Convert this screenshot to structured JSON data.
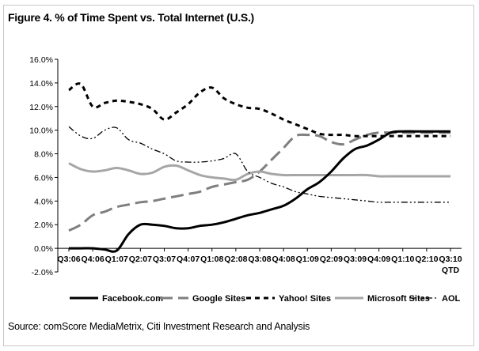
{
  "figure_title": "Figure 4. % of Time Spent vs. Total Internet (U.S.)",
  "source_text": "Source: comScore MediaMetrix, Citi Investment Research and Analysis",
  "chart_data": {
    "type": "line",
    "title": "Figure 4. % of Time Spent vs. Total Internet (U.S.)",
    "xlabel": "",
    "ylabel": "",
    "ylim": [
      -2.0,
      16.0
    ],
    "y_ticks": [
      "-2.0%",
      "0.0%",
      "2.0%",
      "4.0%",
      "6.0%",
      "8.0%",
      "10.0%",
      "12.0%",
      "14.0%",
      "16.0%"
    ],
    "y_tick_values": [
      -2,
      0,
      2,
      4,
      6,
      8,
      10,
      12,
      14,
      16
    ],
    "categories": [
      "Q3:06",
      "Q4:06",
      "Q1:07",
      "Q2:07",
      "Q3:07",
      "Q4:07",
      "Q1:08",
      "Q2:08",
      "Q3:08",
      "Q4:08",
      "Q1:09",
      "Q2:09",
      "Q3:09",
      "Q4:09",
      "Q1:10",
      "Q2:10",
      "Q3:10 QTD"
    ],
    "category_labels": [
      [
        "Q3:06"
      ],
      [
        "Q4:06"
      ],
      [
        "Q1:07"
      ],
      [
        "Q2:07"
      ],
      [
        "Q3:07"
      ],
      [
        "Q4:07"
      ],
      [
        "Q1:08"
      ],
      [
        "Q2:08"
      ],
      [
        "Q3:08"
      ],
      [
        "Q4:08"
      ],
      [
        "Q1:09"
      ],
      [
        "Q2:09"
      ],
      [
        "Q3:09"
      ],
      [
        "Q4:09"
      ],
      [
        "Q1:10"
      ],
      [
        "Q2:10"
      ],
      [
        "Q3:10",
        "QTD"
      ]
    ],
    "x": [
      0,
      0.5,
      1,
      1.5,
      2,
      2.5,
      3,
      3.5,
      4,
      4.5,
      5,
      5.5,
      6,
      6.5,
      7,
      7.5,
      8,
      8.5,
      9,
      9.5,
      10,
      10.5,
      11,
      11.5,
      12,
      12.5,
      13,
      13.5,
      14,
      14.5,
      15,
      15.5,
      16
    ],
    "grid": false,
    "legend_position": "bottom",
    "series": [
      {
        "name": "Facebook.com",
        "style": "solid",
        "color": "#000000",
        "stroke_weight": "heavy",
        "values": [
          0.0,
          0.0,
          0.0,
          -0.1,
          -0.2,
          1.2,
          2.0,
          2.0,
          1.9,
          1.7,
          1.7,
          1.9,
          2.0,
          2.2,
          2.5,
          2.8,
          3.0,
          3.3,
          3.6,
          4.2,
          5.0,
          5.6,
          6.5,
          7.6,
          8.4,
          8.7,
          9.2,
          9.8,
          9.9,
          9.9,
          9.9,
          9.9,
          9.9
        ]
      },
      {
        "name": "Google Sites",
        "style": "long-dash",
        "color": "#7f7f7f",
        "stroke_weight": "heavy",
        "values": [
          1.5,
          2.0,
          2.8,
          3.1,
          3.5,
          3.7,
          3.9,
          4.0,
          4.2,
          4.4,
          4.6,
          4.8,
          5.2,
          5.4,
          5.6,
          5.8,
          6.5,
          7.5,
          8.5,
          9.5,
          9.6,
          9.5,
          9.0,
          8.8,
          9.2,
          9.6,
          9.8,
          9.8,
          9.8,
          9.8,
          9.8,
          9.8,
          9.8
        ]
      },
      {
        "name": "Yahoo! Sites",
        "style": "short-dash",
        "color": "#000000",
        "stroke_weight": "heavy",
        "values": [
          13.4,
          13.9,
          12.0,
          12.3,
          12.5,
          12.4,
          12.2,
          11.8,
          10.9,
          11.5,
          12.2,
          13.2,
          13.6,
          12.7,
          12.2,
          11.9,
          11.8,
          11.4,
          10.9,
          10.5,
          10.1,
          9.7,
          9.6,
          9.6,
          9.5,
          9.5,
          9.5,
          9.5,
          9.5,
          9.5,
          9.5,
          9.5,
          9.5
        ]
      },
      {
        "name": "Microsoft Sites",
        "style": "solid",
        "color": "#a6a6a6",
        "stroke_weight": "heavy",
        "values": [
          7.2,
          6.7,
          6.5,
          6.6,
          6.8,
          6.6,
          6.3,
          6.4,
          6.9,
          7.0,
          6.6,
          6.2,
          6.0,
          5.9,
          5.8,
          6.3,
          6.5,
          6.3,
          6.2,
          6.2,
          6.2,
          6.2,
          6.2,
          6.2,
          6.2,
          6.2,
          6.1,
          6.1,
          6.1,
          6.1,
          6.1,
          6.1,
          6.1
        ]
      },
      {
        "name": "AOL",
        "style": "dash-dot-dot",
        "color": "#000000",
        "stroke_weight": "thin",
        "values": [
          10.3,
          9.5,
          9.3,
          10.0,
          10.2,
          9.2,
          8.9,
          8.4,
          8.0,
          7.4,
          7.3,
          7.3,
          7.4,
          7.6,
          8.0,
          6.5,
          6.0,
          5.5,
          5.2,
          4.8,
          4.6,
          4.4,
          4.3,
          4.2,
          4.1,
          4.0,
          3.9,
          3.9,
          3.9,
          3.9,
          3.9,
          3.9,
          3.9
        ]
      }
    ]
  }
}
